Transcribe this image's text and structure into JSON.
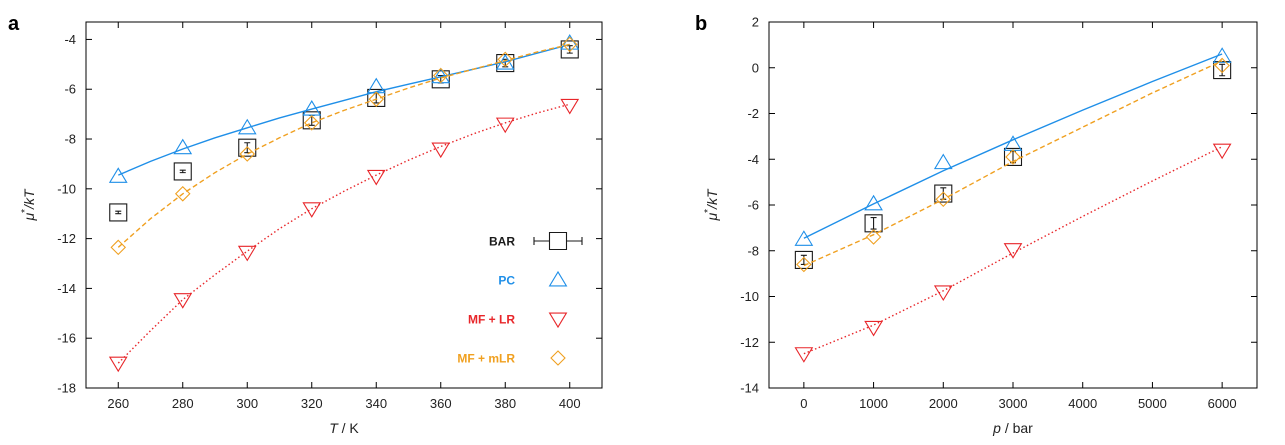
{
  "colors": {
    "BAR": "#1a1a1a",
    "PC": "#1f8fe8",
    "MF + LR": "#e8262a",
    "MF + mLR": "#f0a020",
    "axis": "#000000"
  },
  "chart_data": [
    {
      "panel": "a",
      "type": "scatter",
      "xlabel_var": "T",
      "xlabel_unit": " / K",
      "ylabel_var": "μ",
      "ylabel_sup": "*",
      "ylabel_rest": "/kT",
      "xlim": [
        250,
        410
      ],
      "ylim": [
        -18,
        -3.3
      ],
      "xticks": [
        260,
        280,
        300,
        320,
        340,
        360,
        380,
        400
      ],
      "yticks": [
        -18,
        -16,
        -14,
        -12,
        -10,
        -8,
        -6,
        -4
      ],
      "legend_position": "right",
      "legend": [
        "BAR",
        "PC",
        "MF + LR",
        "MF + mLR"
      ],
      "series": [
        {
          "name": "BAR",
          "marker": "square",
          "x": [
            260,
            280,
            300,
            320,
            340,
            360,
            380,
            400
          ],
          "y": [
            -10.95,
            -9.3,
            -8.35,
            -7.25,
            -6.35,
            -5.6,
            -4.95,
            -4.4
          ],
          "err": [
            0.05,
            0.05,
            0.2,
            0.2,
            0.2,
            0.15,
            0.15,
            0.15
          ]
        },
        {
          "name": "PC",
          "marker": "triangle-up",
          "x": [
            260,
            280,
            300,
            320,
            340,
            360,
            380,
            400
          ],
          "y": [
            -9.5,
            -8.35,
            -7.55,
            -6.8,
            -5.9,
            -5.5,
            -4.95,
            -4.15
          ],
          "fit_x": [
            260,
            270,
            280,
            290,
            300,
            310,
            320,
            330,
            340,
            350,
            360,
            370,
            380,
            390,
            400
          ],
          "fit_y": [
            -9.45,
            -8.9,
            -8.4,
            -7.95,
            -7.55,
            -7.15,
            -6.8,
            -6.45,
            -6.1,
            -5.8,
            -5.5,
            -5.2,
            -4.9,
            -4.55,
            -4.2
          ],
          "fit_style": "solid"
        },
        {
          "name": "MF + LR",
          "marker": "triangle-down",
          "x": [
            260,
            280,
            300,
            320,
            340,
            360,
            380,
            400
          ],
          "y": [
            -17.0,
            -14.45,
            -12.55,
            -10.8,
            -9.5,
            -8.4,
            -7.4,
            -6.65
          ],
          "fit_x": [
            260,
            270,
            280,
            290,
            300,
            310,
            320,
            330,
            340,
            350,
            360,
            370,
            380,
            390,
            400
          ],
          "fit_y": [
            -17.0,
            -15.7,
            -14.45,
            -13.45,
            -12.5,
            -11.6,
            -10.8,
            -10.1,
            -9.45,
            -8.85,
            -8.3,
            -7.8,
            -7.35,
            -6.95,
            -6.6
          ],
          "fit_style": "dotted"
        },
        {
          "name": "MF + mLR",
          "marker": "diamond",
          "x": [
            260,
            280,
            300,
            320,
            340,
            360,
            380,
            400
          ],
          "y": [
            -12.35,
            -10.2,
            -8.6,
            -7.35,
            -6.4,
            -5.45,
            -4.8,
            -4.2
          ],
          "fit_x": [
            260,
            270,
            280,
            290,
            300,
            310,
            320,
            330,
            340,
            350,
            360,
            370,
            380,
            390,
            400
          ],
          "fit_y": [
            -12.35,
            -11.2,
            -10.2,
            -9.35,
            -8.6,
            -7.95,
            -7.35,
            -6.85,
            -6.4,
            -5.95,
            -5.55,
            -5.2,
            -4.85,
            -4.5,
            -4.2
          ],
          "fit_style": "dashed"
        }
      ]
    },
    {
      "panel": "b",
      "type": "scatter",
      "xlabel_var": "p",
      "xlabel_unit": " / bar",
      "ylabel_var": "μ",
      "ylabel_sup": "*",
      "ylabel_rest": "/kT",
      "xlim": [
        -500,
        6500
      ],
      "ylim": [
        -14,
        2
      ],
      "xticks": [
        0,
        1000,
        2000,
        3000,
        4000,
        5000,
        6000
      ],
      "yticks": [
        -14,
        -12,
        -10,
        -8,
        -6,
        -4,
        -2,
        0,
        2
      ],
      "series": [
        {
          "name": "BAR",
          "marker": "square",
          "x": [
            0,
            1000,
            2000,
            3000,
            6000
          ],
          "y": [
            -8.4,
            -6.8,
            -5.5,
            -3.9,
            -0.1
          ],
          "err": [
            0.2,
            0.25,
            0.25,
            0.25,
            0.25
          ]
        },
        {
          "name": "PC",
          "marker": "triangle-up",
          "x": [
            0,
            1000,
            2000,
            3000,
            6000
          ],
          "y": [
            -7.5,
            -5.95,
            -4.15,
            -3.35,
            0.5
          ],
          "fit_x": [
            0,
            1000,
            2000,
            3000,
            4000,
            5000,
            6000
          ],
          "fit_y": [
            -7.45,
            -5.95,
            -4.5,
            -3.15,
            -1.85,
            -0.6,
            0.6
          ],
          "fit_style": "solid"
        },
        {
          "name": "MF + LR",
          "marker": "triangle-down",
          "x": [
            0,
            1000,
            2000,
            3000,
            6000
          ],
          "y": [
            -12.5,
            -11.35,
            -9.8,
            -7.95,
            -3.6
          ],
          "fit_x": [
            0,
            1000,
            2000,
            3000,
            4000,
            5000,
            6000
          ],
          "fit_y": [
            -12.5,
            -11.25,
            -9.75,
            -8.1,
            -6.5,
            -4.95,
            -3.45
          ],
          "fit_style": "dotted"
        },
        {
          "name": "MF + mLR",
          "marker": "diamond",
          "x": [
            0,
            1000,
            2000,
            3000,
            6000
          ],
          "y": [
            -8.6,
            -7.4,
            -5.75,
            -3.9,
            0.1
          ],
          "fit_x": [
            0,
            1000,
            2000,
            3000,
            4000,
            5000,
            6000
          ],
          "fit_y": [
            -8.65,
            -7.3,
            -5.75,
            -4.1,
            -2.6,
            -1.1,
            0.3
          ],
          "fit_style": "dashed"
        }
      ]
    }
  ]
}
